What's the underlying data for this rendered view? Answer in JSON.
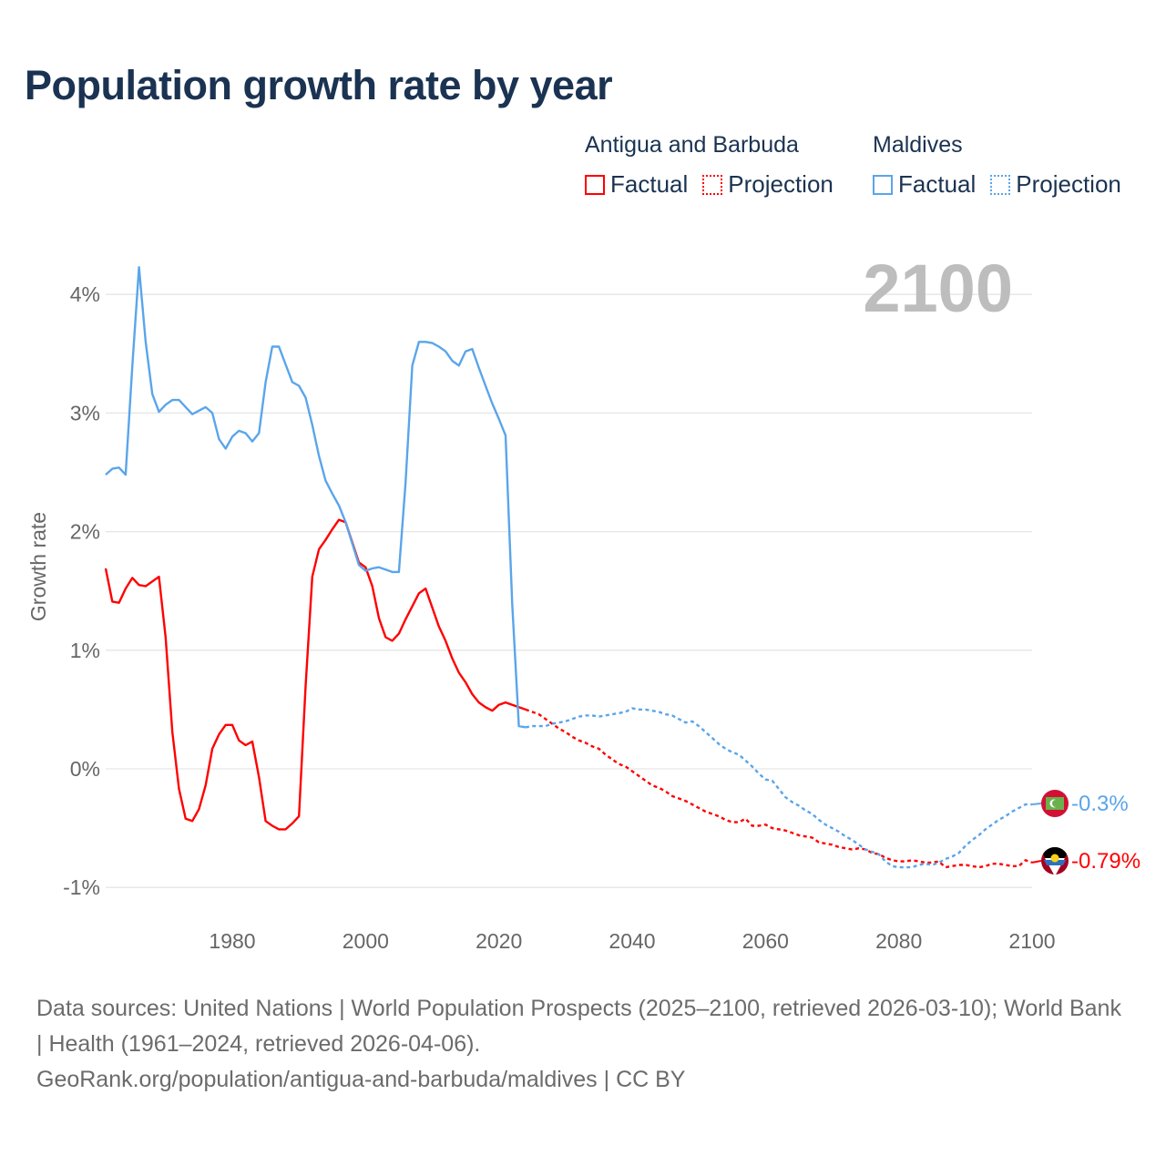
{
  "title": "Population growth rate by year",
  "legend": [
    {
      "country": "Antigua and Barbuda",
      "factual_label": "Factual",
      "projection_label": "Projection",
      "color": "#ff0000"
    },
    {
      "country": "Maldives",
      "factual_label": "Factual",
      "projection_label": "Projection",
      "color": "#5aa5ea"
    }
  ],
  "year_display": "2100",
  "end_labels": {
    "maldives": "-0.3%",
    "antigua": "-0.79%"
  },
  "sources": {
    "line1": "Data sources: United Nations | World Population Prospects (2025–2100, retrieved 2026-03-10); World Bank | Health (1961–2024, retrieved 2026-04-06).",
    "line2": "GeoRank.org/population/antigua-and-barbuda/maldives | CC BY"
  },
  "chart_data": {
    "type": "line",
    "title": "Population growth rate by year",
    "xlabel": "",
    "ylabel": "Growth rate",
    "xlim": [
      1961,
      2100
    ],
    "ylim": [
      -1.2,
      4.3
    ],
    "x_ticks": [
      1980,
      2000,
      2020,
      2040,
      2060,
      2080,
      2100
    ],
    "x_tick_labels": [
      "1980",
      "2000",
      "2020",
      "2040",
      "2060",
      "2080",
      "2100"
    ],
    "y_ticks": [
      -1,
      0,
      1,
      2,
      3,
      4
    ],
    "y_tick_labels": [
      "-1%",
      "0%",
      "1%",
      "2%",
      "3%",
      "4%"
    ],
    "grid": true,
    "legend_position": "top-right",
    "series": [
      {
        "name": "Antigua and Barbuda",
        "kind": "factual",
        "color": "#ff0000",
        "x_start": 1961,
        "values": [
          1.69,
          1.41,
          1.4,
          1.52,
          1.61,
          1.55,
          1.54,
          1.58,
          1.62,
          1.11,
          0.31,
          -0.17,
          -0.42,
          -0.44,
          -0.34,
          -0.14,
          0.17,
          0.29,
          0.37,
          0.37,
          0.24,
          0.2,
          0.23,
          -0.07,
          -0.44,
          -0.48,
          -0.51,
          -0.51,
          -0.46,
          -0.4,
          0.7,
          1.62,
          1.85,
          1.93,
          2.02,
          2.1,
          2.08,
          1.91,
          1.74,
          1.7,
          1.54,
          1.27,
          1.11,
          1.08,
          1.14,
          1.26,
          1.37,
          1.48,
          1.52,
          1.36,
          1.2,
          1.08,
          0.93,
          0.81,
          0.73,
          0.63,
          0.56,
          0.52,
          0.49,
          0.54,
          0.56,
          0.54,
          0.52,
          0.5
        ]
      },
      {
        "name": "Antigua and Barbuda",
        "kind": "projection",
        "color": "#ff0000",
        "x_start": 2024,
        "values": [
          0.5,
          0.48,
          0.46,
          0.42,
          0.38,
          0.34,
          0.31,
          0.27,
          0.24,
          0.22,
          0.19,
          0.17,
          0.12,
          0.08,
          0.04,
          0.02,
          -0.02,
          -0.06,
          -0.1,
          -0.14,
          -0.16,
          -0.19,
          -0.23,
          -0.25,
          -0.27,
          -0.3,
          -0.33,
          -0.36,
          -0.38,
          -0.4,
          -0.43,
          -0.45,
          -0.45,
          -0.42,
          -0.48,
          -0.48,
          -0.47,
          -0.5,
          -0.51,
          -0.52,
          -0.54,
          -0.56,
          -0.57,
          -0.58,
          -0.62,
          -0.63,
          -0.64,
          -0.66,
          -0.67,
          -0.68,
          -0.67,
          -0.68,
          -0.71,
          -0.72,
          -0.75,
          -0.77,
          -0.78,
          -0.78,
          -0.77,
          -0.78,
          -0.79,
          -0.79,
          -0.78,
          -0.83,
          -0.82,
          -0.81,
          -0.81,
          -0.82,
          -0.83,
          -0.82,
          -0.8,
          -0.8,
          -0.81,
          -0.82,
          -0.82,
          -0.77,
          -0.79
        ]
      },
      {
        "name": "Maldives",
        "kind": "factual",
        "color": "#5aa5ea",
        "x_start": 1961,
        "values": [
          2.48,
          2.53,
          2.54,
          2.48,
          3.4,
          4.23,
          3.6,
          3.16,
          3.01,
          3.07,
          3.11,
          3.11,
          3.05,
          2.99,
          3.02,
          3.05,
          3.0,
          2.78,
          2.7,
          2.8,
          2.85,
          2.83,
          2.76,
          2.83,
          3.26,
          3.56,
          3.56,
          3.41,
          3.26,
          3.23,
          3.13,
          2.9,
          2.64,
          2.43,
          2.32,
          2.22,
          2.08,
          1.9,
          1.72,
          1.67,
          1.69,
          1.7,
          1.68,
          1.66,
          1.66,
          2.41,
          3.4,
          3.6,
          3.6,
          3.59,
          3.56,
          3.52,
          3.44,
          3.4,
          3.52,
          3.54,
          3.38,
          3.23,
          3.08,
          2.95,
          2.81,
          1.39,
          0.36,
          0.35
        ]
      },
      {
        "name": "Maldives",
        "kind": "projection",
        "color": "#5aa5ea",
        "x_start": 2024,
        "values": [
          0.35,
          0.36,
          0.36,
          0.36,
          0.38,
          0.39,
          0.4,
          0.42,
          0.44,
          0.45,
          0.45,
          0.44,
          0.45,
          0.46,
          0.47,
          0.48,
          0.51,
          0.5,
          0.5,
          0.49,
          0.48,
          0.46,
          0.45,
          0.42,
          0.39,
          0.4,
          0.36,
          0.31,
          0.26,
          0.21,
          0.17,
          0.14,
          0.12,
          0.07,
          0.02,
          -0.04,
          -0.09,
          -0.1,
          -0.17,
          -0.24,
          -0.28,
          -0.31,
          -0.35,
          -0.38,
          -0.43,
          -0.47,
          -0.5,
          -0.53,
          -0.57,
          -0.6,
          -0.64,
          -0.68,
          -0.7,
          -0.72,
          -0.78,
          -0.82,
          -0.83,
          -0.83,
          -0.83,
          -0.81,
          -0.8,
          -0.81,
          -0.79,
          -0.76,
          -0.74,
          -0.71,
          -0.65,
          -0.6,
          -0.56,
          -0.51,
          -0.47,
          -0.43,
          -0.4,
          -0.36,
          -0.33,
          -0.3,
          -0.3
        ]
      }
    ]
  }
}
